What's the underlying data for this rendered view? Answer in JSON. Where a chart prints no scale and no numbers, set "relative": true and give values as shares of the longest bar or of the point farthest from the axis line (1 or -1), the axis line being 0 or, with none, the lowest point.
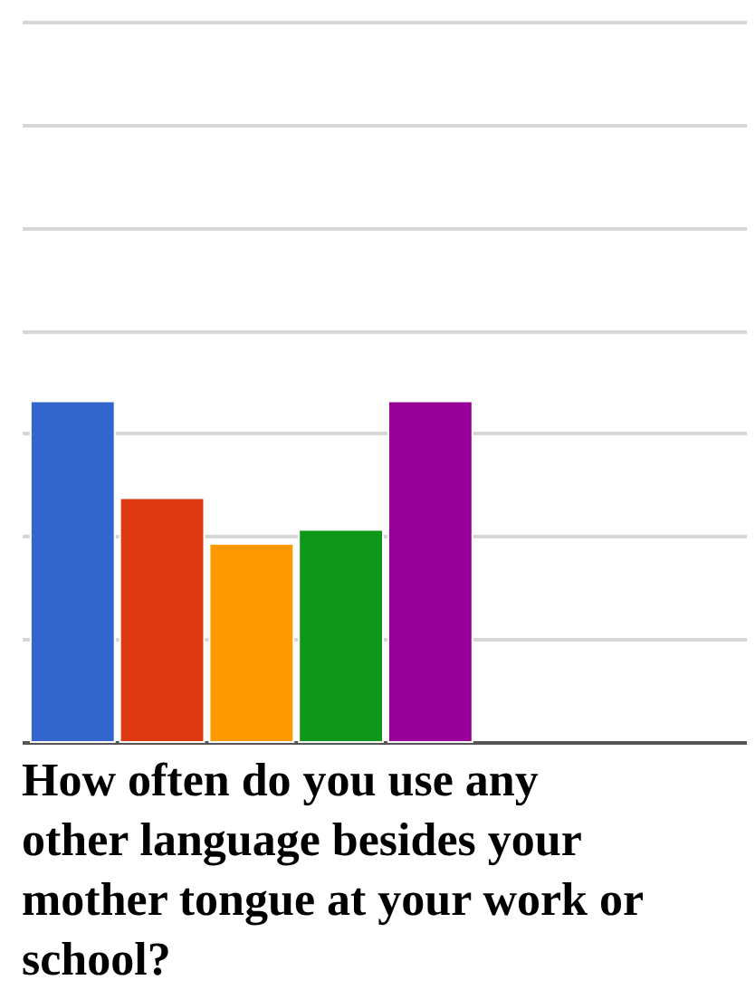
{
  "chart_data": {
    "type": "bar",
    "title": "How often do you use any other language besides your mother tongue at your work or school?",
    "categories": [
      null,
      null,
      null,
      null,
      null
    ],
    "values": [
      1,
      0.716,
      0.582,
      0.623,
      1
    ],
    "colors": [
      "#3366cc",
      "#dc3912",
      "#ff9900",
      "#109618",
      "#990099"
    ],
    "relative": true,
    "grid": "y"
  }
}
